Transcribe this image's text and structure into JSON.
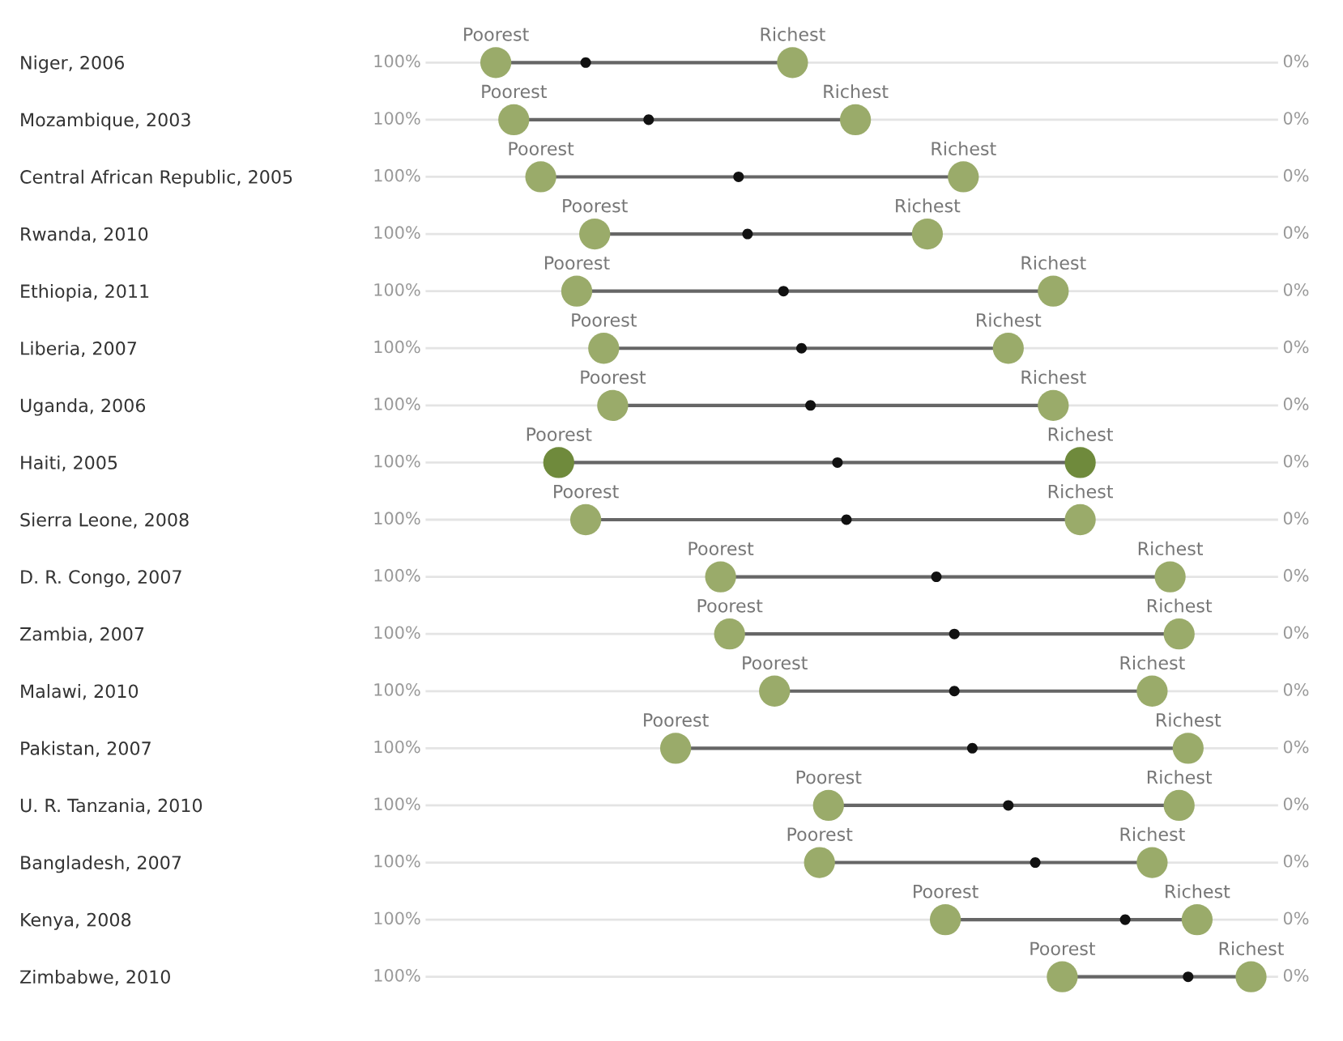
{
  "chart_data": {
    "type": "scatter",
    "categories": [
      "Niger, 2006",
      "Mozambique, 2003",
      "Central African Republic, 2005",
      "Rwanda, 2010",
      "Ethiopia, 2011",
      "Liberia, 2007",
      "Uganda, 2006",
      "Haiti, 2005",
      "Sierra Leone, 2008",
      "D. R. Congo, 2007",
      "Zambia, 2007",
      "Malawi, 2010",
      "Pakistan, 2007",
      "U. R. Tanzania, 2010",
      "Bangladesh, 2007",
      "Kenya, 2008",
      "Zimbabwe, 2010"
    ],
    "orientation": "horizontal",
    "xlim": [
      100,
      0
    ],
    "xticks": [
      {
        "value": 100,
        "label": "100%"
      },
      {
        "value": 0,
        "label": "0%"
      }
    ],
    "grid": "y",
    "series": [
      {
        "name": "Poorest",
        "colors": [
          "#9aab6a",
          "#9aab6a",
          "#9aab6a",
          "#9aab6a",
          "#9aab6a",
          "#9aab6a",
          "#9aab6a",
          "#6f8a3c",
          "#9aab6a",
          "#9aab6a",
          "#9aab6a",
          "#9aab6a",
          "#9aab6a",
          "#9aab6a",
          "#9aab6a",
          "#9aab6a",
          "#9aab6a"
        ],
        "values": [
          89,
          87,
          84,
          78,
          80,
          77,
          76,
          82,
          79,
          64,
          63,
          58,
          69,
          52,
          53,
          39,
          26
        ]
      },
      {
        "name": "Richest",
        "colors": [
          "#9aab6a",
          "#9aab6a",
          "#9aab6a",
          "#9aab6a",
          "#9aab6a",
          "#9aab6a",
          "#9aab6a",
          "#6f8a3c",
          "#9aab6a",
          "#9aab6a",
          "#9aab6a",
          "#9aab6a",
          "#9aab6a",
          "#9aab6a",
          "#9aab6a",
          "#9aab6a",
          "#9aab6a"
        ],
        "values": [
          56,
          49,
          37,
          41,
          27,
          32,
          27,
          24,
          24,
          14,
          13,
          16,
          12,
          13,
          16,
          11,
          5
        ]
      },
      {
        "color": "#111111",
        "values": [
          79,
          72,
          62,
          61,
          57,
          55,
          54,
          51,
          50,
          40,
          38,
          38,
          36,
          32,
          29,
          19,
          12
        ]
      }
    ]
  }
}
